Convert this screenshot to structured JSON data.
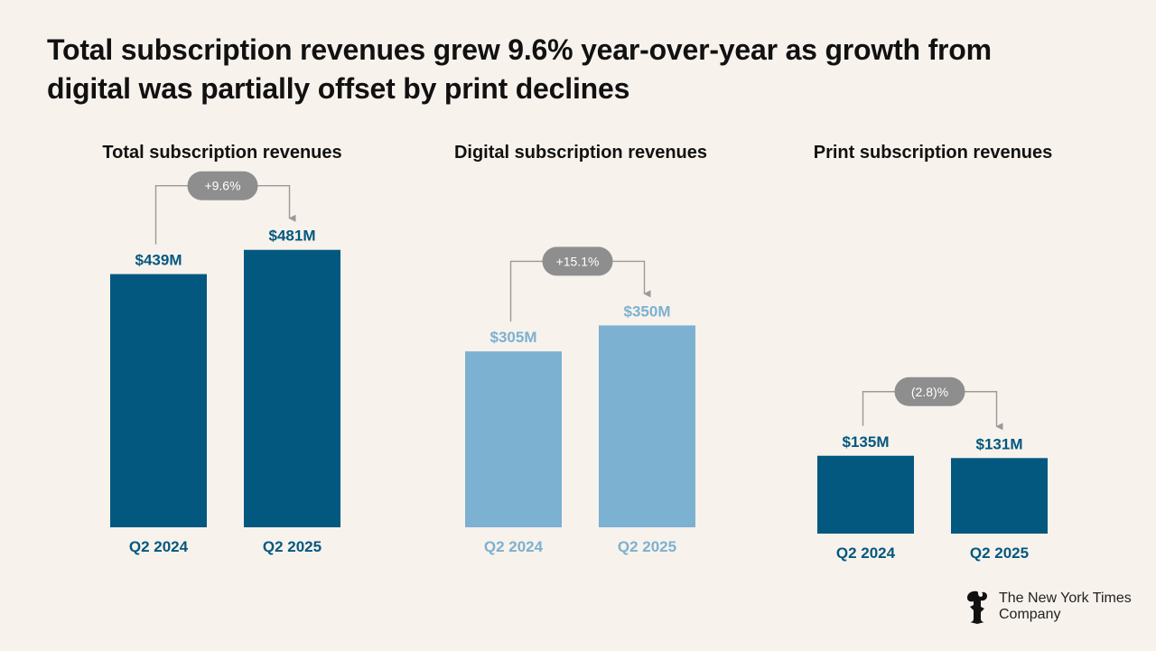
{
  "headline": {
    "line1": "Total subscription revenues grew 9.6% year-over-year as growth from",
    "line2": "digital was partially offset by print declines"
  },
  "colors": {
    "dark": "#03587f",
    "light": "#7cb1d1",
    "connector": "#9a9a9a",
    "pill": "#8e8e8e",
    "pill_text": "#ffffff"
  },
  "chart_data": [
    {
      "type": "bar",
      "title": "Total subscription revenues",
      "categories": [
        "Q2 2024",
        "Q2 2025"
      ],
      "values": [
        439,
        481
      ],
      "value_labels": [
        "$439M",
        "$481M"
      ],
      "change_label": "+9.6%",
      "unit": "$M",
      "color": "dark"
    },
    {
      "type": "bar",
      "title": "Digital subscription revenues",
      "categories": [
        "Q2 2024",
        "Q2 2025"
      ],
      "values": [
        305,
        350
      ],
      "value_labels": [
        "$305M",
        "$350M"
      ],
      "change_label": "+15.1%",
      "unit": "$M",
      "color": "light"
    },
    {
      "type": "bar",
      "title": "Print subscription revenues",
      "categories": [
        "Q2 2024",
        "Q2 2025"
      ],
      "values": [
        135,
        131
      ],
      "value_labels": [
        "$135M",
        "$131M"
      ],
      "change_label": "(2.8)%",
      "unit": "$M",
      "color": "dark"
    }
  ],
  "logo": {
    "line1": "The New York Times",
    "line2": "Company"
  }
}
